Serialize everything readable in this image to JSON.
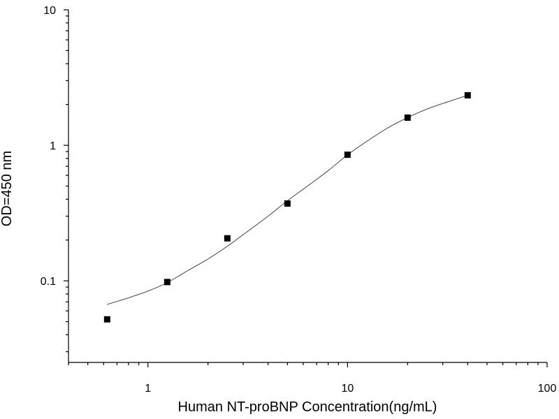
{
  "chart_data": {
    "type": "scatter",
    "title": "",
    "xlabel": "Human NT-proBNP Concentration(ng/mL)",
    "ylabel": "OD=450 nm",
    "xscale": "log",
    "yscale": "log",
    "xlim": [
      0.4,
      100
    ],
    "ylim": [
      0.025,
      10
    ],
    "x_ticks": [
      {
        "value": 1,
        "label": "1"
      },
      {
        "value": 10,
        "label": "10"
      },
      {
        "value": 100,
        "label": "100"
      }
    ],
    "y_ticks": [
      {
        "value": 0.1,
        "label": "0.1"
      },
      {
        "value": 1,
        "label": "1"
      },
      {
        "value": 10,
        "label": "10"
      }
    ],
    "grid": false,
    "legend": "none",
    "series": [
      {
        "marker": "square",
        "x": [
          0.625,
          1.25,
          2.5,
          5,
          10,
          20,
          40
        ],
        "y": [
          0.052,
          0.098,
          0.206,
          0.372,
          0.852,
          1.6,
          2.34
        ]
      }
    ],
    "fit_curve": {
      "style": "smooth",
      "x": [
        0.625,
        0.8,
        1.0,
        1.25,
        1.6,
        2.0,
        2.5,
        3.2,
        4.0,
        5.0,
        6.3,
        8.0,
        10,
        12.5,
        16,
        20,
        25,
        32,
        40
      ],
      "y": [
        0.067,
        0.075,
        0.084,
        0.097,
        0.12,
        0.145,
        0.18,
        0.235,
        0.3,
        0.39,
        0.5,
        0.65,
        0.85,
        1.07,
        1.35,
        1.6,
        1.85,
        2.1,
        2.34
      ]
    }
  }
}
